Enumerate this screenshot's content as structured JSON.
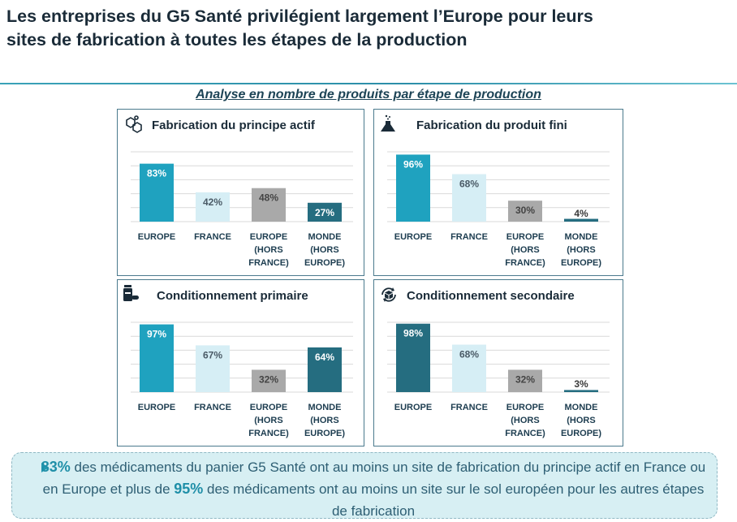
{
  "header": {
    "title_line1": "Les entreprises du G5 Santé privilégient largement l’Europe pour leurs",
    "title_line2": "sites de fabrication à toutes les étapes de la production",
    "subtitle": "Analyse en nombre de produits par étape de production"
  },
  "colors": {
    "europe_bright": "#1fa2bf",
    "europe_dark": "#256d80",
    "france": "#d6eef5",
    "europe_hors_france": "#a9a9a9",
    "monde": "#256d80",
    "grid": "#d9d9d9"
  },
  "chart_data": [
    {
      "type": "bar",
      "title": "Fabrication du principe actif",
      "icon": "molecule-icon",
      "categories": [
        "EUROPE",
        "FRANCE",
        "EUROPE (HORS FRANCE)",
        "MONDE (HORS EUROPE)"
      ],
      "values": [
        83,
        42,
        48,
        27
      ],
      "value_labels": [
        "83%",
        "42%",
        "48%",
        "27%"
      ],
      "ylim": [
        0,
        100
      ]
    },
    {
      "type": "bar",
      "title": "Fabrication du produit fini",
      "icon": "flask-icon",
      "categories": [
        "EUROPE",
        "FRANCE",
        "EUROPE (HORS FRANCE)",
        "MONDE (HORS EUROPE)"
      ],
      "values": [
        96,
        68,
        30,
        4
      ],
      "value_labels": [
        "96%",
        "68%",
        "30%",
        "4%"
      ],
      "ylim": [
        0,
        100
      ]
    },
    {
      "type": "bar",
      "title": "Conditionnement primaire",
      "icon": "pill-bottle-icon",
      "categories": [
        "EUROPE",
        "FRANCE",
        "EUROPE (HORS FRANCE)",
        "MONDE (HORS EUROPE)"
      ],
      "values": [
        97,
        67,
        32,
        64
      ],
      "value_labels": [
        "97%",
        "67%",
        "32%",
        "64%"
      ],
      "ylim": [
        0,
        100
      ]
    },
    {
      "type": "bar",
      "title": "Conditionnement secondaire",
      "icon": "package-cycle-icon",
      "categories": [
        "EUROPE",
        "FRANCE",
        "EUROPE (HORS FRANCE)",
        "MONDE (HORS EUROPE)"
      ],
      "values": [
        98,
        68,
        32,
        3
      ],
      "value_labels": [
        "98%",
        "68%",
        "32%",
        "3%"
      ],
      "ylim": [
        0,
        100
      ]
    }
  ],
  "footer": {
    "stat1": "83%",
    "text1": " des médicaments du panier G5 Santé ont au moins un site de fabrication du principe actif en France ou en Europe et plus de ",
    "stat2": "95%",
    "text2": " des médicaments ont au moins un site sur le sol européen pour les autres étapes de fabrication"
  }
}
